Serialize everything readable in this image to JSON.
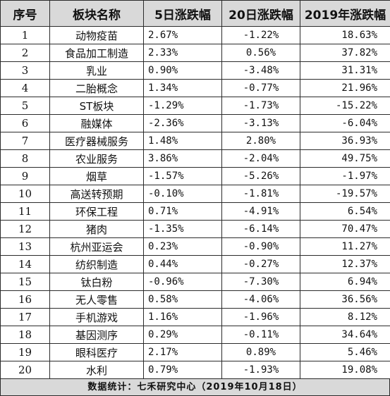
{
  "headers": {
    "index": "序号",
    "sector": "板块名称",
    "change_5d": "5日涨跌幅",
    "change_20d": "20日涨跌幅",
    "change_2019": "2019年涨跌幅"
  },
  "rows": [
    {
      "index": "1",
      "sector": "动物疫苗",
      "change_5d": "2.67%",
      "change_20d": "-1.22%",
      "change_2019": "18.63%"
    },
    {
      "index": "2",
      "sector": "食品加工制造",
      "change_5d": "2.33%",
      "change_20d": "0.56%",
      "change_2019": "37.82%"
    },
    {
      "index": "3",
      "sector": "乳业",
      "change_5d": "0.90%",
      "change_20d": "-3.48%",
      "change_2019": "31.31%"
    },
    {
      "index": "4",
      "sector": "二胎概念",
      "change_5d": "1.34%",
      "change_20d": "-0.77%",
      "change_2019": "21.96%"
    },
    {
      "index": "5",
      "sector": "ST板块",
      "change_5d": "-1.29%",
      "change_20d": "-1.73%",
      "change_2019": "-15.22%"
    },
    {
      "index": "6",
      "sector": "融媒体",
      "change_5d": "-2.36%",
      "change_20d": "-3.13%",
      "change_2019": "-6.04%"
    },
    {
      "index": "7",
      "sector": "医疗器械服务",
      "change_5d": "1.48%",
      "change_20d": "2.80%",
      "change_2019": "36.93%"
    },
    {
      "index": "8",
      "sector": "农业服务",
      "change_5d": "3.86%",
      "change_20d": "-2.04%",
      "change_2019": "49.75%"
    },
    {
      "index": "9",
      "sector": "烟草",
      "change_5d": "-1.57%",
      "change_20d": "-5.26%",
      "change_2019": "-1.97%"
    },
    {
      "index": "10",
      "sector": "高送转预期",
      "change_5d": "-0.10%",
      "change_20d": "-1.81%",
      "change_2019": "-19.57%"
    },
    {
      "index": "11",
      "sector": "环保工程",
      "change_5d": "0.71%",
      "change_20d": "-4.91%",
      "change_2019": "6.54%"
    },
    {
      "index": "12",
      "sector": "猪肉",
      "change_5d": "-1.35%",
      "change_20d": "-6.14%",
      "change_2019": "70.47%"
    },
    {
      "index": "13",
      "sector": "杭州亚运会",
      "change_5d": "0.23%",
      "change_20d": "-0.90%",
      "change_2019": "11.27%"
    },
    {
      "index": "14",
      "sector": "纺织制造",
      "change_5d": "0.44%",
      "change_20d": "-0.27%",
      "change_2019": "12.37%"
    },
    {
      "index": "15",
      "sector": "钛白粉",
      "change_5d": "-0.96%",
      "change_20d": "-7.30%",
      "change_2019": "6.94%"
    },
    {
      "index": "16",
      "sector": "无人零售",
      "change_5d": "0.58%",
      "change_20d": "-4.06%",
      "change_2019": "36.56%"
    },
    {
      "index": "17",
      "sector": "手机游戏",
      "change_5d": "1.16%",
      "change_20d": "-1.96%",
      "change_2019": "8.12%"
    },
    {
      "index": "18",
      "sector": "基因测序",
      "change_5d": "0.29%",
      "change_20d": "-0.11%",
      "change_2019": "34.64%"
    },
    {
      "index": "19",
      "sector": "眼科医疗",
      "change_5d": "2.17%",
      "change_20d": "0.89%",
      "change_2019": "5.46%"
    },
    {
      "index": "20",
      "sector": "水利",
      "change_5d": "0.79%",
      "change_20d": "-1.93%",
      "change_2019": "19.08%"
    }
  ],
  "footer": "数据统计：七禾研究中心（2019年10月18日）",
  "colors": {
    "header_bg": "#d9d9d9",
    "border": "#2b2b2b",
    "text": "#111111"
  }
}
